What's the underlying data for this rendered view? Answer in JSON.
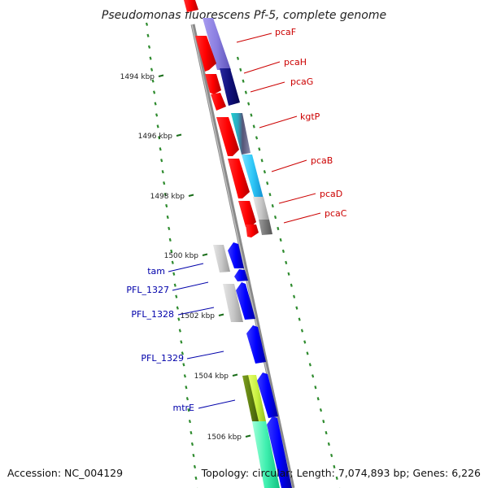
{
  "title": "Pseudomonas fluorescens Pf-5, complete genome",
  "footer": {
    "accession": "Accession: NC_004129",
    "summary": "Topology: circular; Length: 7,074,893 bp; Genes: 6,226"
  },
  "ticks": [
    "1494 kbp",
    "1496 kbp",
    "1498 kbp",
    "1500 kbp",
    "1502 kbp",
    "1504 kbp",
    "1506 kbp"
  ],
  "genes_top": [
    {
      "name": "pcaF",
      "color": "#cc0000"
    },
    {
      "name": "pcaH",
      "color": "#cc0000"
    },
    {
      "name": "pcaG",
      "color": "#cc0000"
    },
    {
      "name": "kgtP",
      "color": "#cc0000"
    },
    {
      "name": "pcaB",
      "color": "#cc0000"
    },
    {
      "name": "pcaD",
      "color": "#cc0000"
    },
    {
      "name": "pcaC",
      "color": "#cc0000"
    }
  ],
  "genes_bottom": [
    {
      "name": "tam",
      "color": "#0000aa"
    },
    {
      "name": "PFL_1327",
      "color": "#0000aa"
    },
    {
      "name": "PFL_1328",
      "color": "#0000aa"
    },
    {
      "name": "PFL_1329",
      "color": "#0000aa"
    },
    {
      "name": "mtrE",
      "color": "#0000aa"
    }
  ]
}
